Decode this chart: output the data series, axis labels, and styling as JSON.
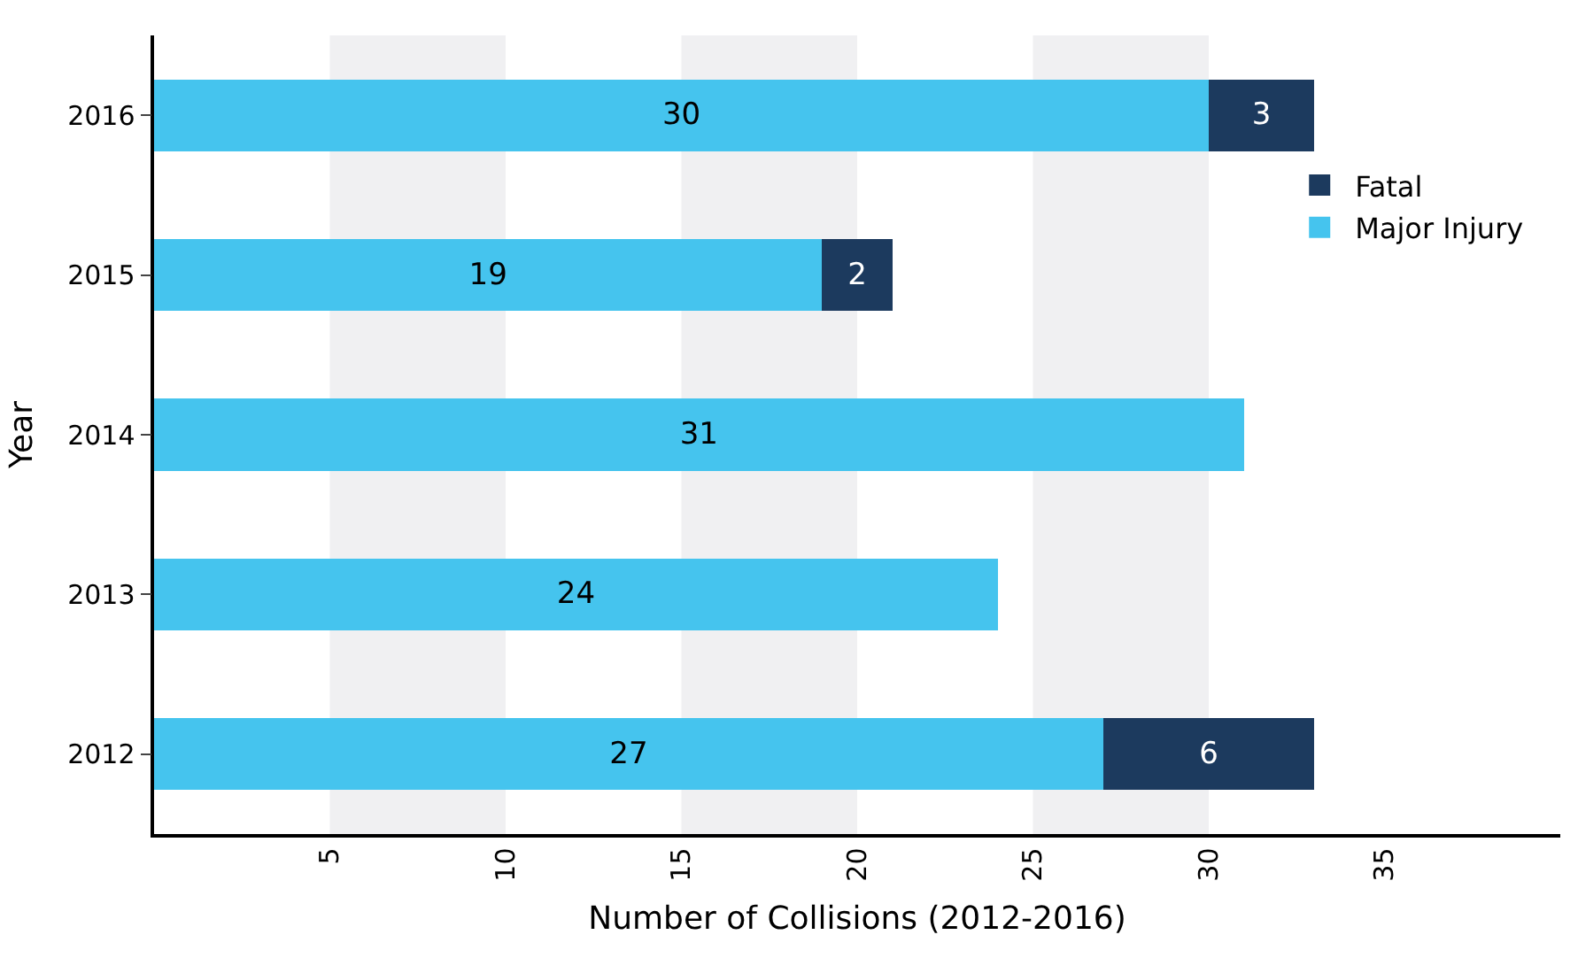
{
  "chart_data": {
    "type": "bar",
    "orientation": "horizontal",
    "stacked": true,
    "data_labels": true,
    "categories": [
      "2016",
      "2015",
      "2014",
      "2013",
      "2012"
    ],
    "series": [
      {
        "name": "Major Injury",
        "color": "#45c4ee",
        "values": [
          30,
          19,
          31,
          24,
          27
        ]
      },
      {
        "name": "Fatal",
        "color": "#1c3a5e",
        "values": [
          3,
          2,
          null,
          null,
          6
        ]
      }
    ],
    "xlabel": "Number of Collisions (2012-2016)",
    "ylabel": "Year",
    "xlim": [
      0,
      40
    ],
    "xticks": [
      5,
      10,
      15,
      20,
      25,
      30,
      35
    ],
    "bands": [
      {
        "axis": "x",
        "from": 5,
        "to": 10,
        "color": "#f0f0f2"
      },
      {
        "axis": "x",
        "from": 15,
        "to": 20,
        "color": "#f0f0f2"
      },
      {
        "axis": "x",
        "from": 25,
        "to": 30,
        "color": "#f0f0f2"
      }
    ],
    "grid": false,
    "legend": "top right"
  }
}
